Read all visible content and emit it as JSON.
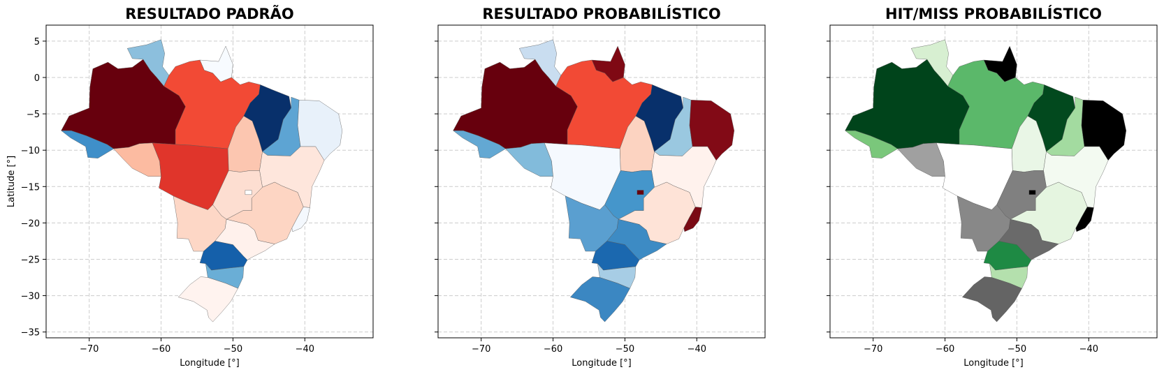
{
  "figure": {
    "panels": [
      {
        "title": "RESULTADO PADRÃO",
        "xlabel": "Longitude [°]",
        "ylabel": "Latitude [°]",
        "show_y_tick_labels": true,
        "colormap": "Blues/Reds diverging",
        "regions": [
          {
            "name": "AC",
            "fill": "#3f8fc9"
          },
          {
            "name": "AM",
            "fill": "#67000d"
          },
          {
            "name": "RR",
            "fill": "#8cbfdd"
          },
          {
            "name": "AP",
            "fill": "#f7fbff"
          },
          {
            "name": "PA",
            "fill": "#f24a35"
          },
          {
            "name": "RO",
            "fill": "#fcbba1"
          },
          {
            "name": "MT",
            "fill": "#e0352b"
          },
          {
            "name": "TO",
            "fill": "#fcc6b0"
          },
          {
            "name": "MA",
            "fill": "#08306b"
          },
          {
            "name": "PI",
            "fill": "#5da4d3"
          },
          {
            "name": "NE",
            "fill": "#e8f1fa"
          },
          {
            "name": "BA",
            "fill": "#fee6dc"
          },
          {
            "name": "GO",
            "fill": "#fdded1"
          },
          {
            "name": "MG",
            "fill": "#fdd5c3"
          },
          {
            "name": "MS",
            "fill": "#fdd7c6"
          },
          {
            "name": "SP",
            "fill": "#fff1ec"
          },
          {
            "name": "ES",
            "fill": "#f4f8fd"
          },
          {
            "name": "PR",
            "fill": "#1560aa"
          },
          {
            "name": "SC",
            "fill": "#6aaed6"
          },
          {
            "name": "RS",
            "fill": "#fff3ef"
          }
        ]
      },
      {
        "title": "RESULTADO PROBABILÍSTICO",
        "xlabel": "Longitude [°]",
        "ylabel": "",
        "show_y_tick_labels": false,
        "colormap": "Blues/Reds diverging",
        "regions": [
          {
            "name": "AC",
            "fill": "#63a8d3"
          },
          {
            "name": "AM",
            "fill": "#67000d"
          },
          {
            "name": "RR",
            "fill": "#c9ddf0"
          },
          {
            "name": "AP",
            "fill": "#7f0914"
          },
          {
            "name": "PA",
            "fill": "#f24a35"
          },
          {
            "name": "RO",
            "fill": "#82bbdb"
          },
          {
            "name": "MT",
            "fill": "#f5f9fe"
          },
          {
            "name": "TO",
            "fill": "#fcd3c1"
          },
          {
            "name": "MA",
            "fill": "#08306b"
          },
          {
            "name": "PI",
            "fill": "#9ac8e0"
          },
          {
            "name": "NE",
            "fill": "#820a16"
          },
          {
            "name": "BA",
            "fill": "#fff2ed"
          },
          {
            "name": "GO",
            "fill": "#4596cb"
          },
          {
            "name": "MG",
            "fill": "#fee3d7"
          },
          {
            "name": "MS",
            "fill": "#5a9fd0"
          },
          {
            "name": "SP",
            "fill": "#3d8bc4"
          },
          {
            "name": "ES",
            "fill": "#7a0a14"
          },
          {
            "name": "PR",
            "fill": "#1b68af"
          },
          {
            "name": "SC",
            "fill": "#a7cde5"
          },
          {
            "name": "RS",
            "fill": "#3b87c2"
          }
        ]
      },
      {
        "title": "HIT/MISS PROBABILÍSTICO",
        "xlabel": "Longitude [°]",
        "ylabel": "",
        "show_y_tick_labels": false,
        "colormap": "Greens/Greys",
        "regions": [
          {
            "name": "AC",
            "fill": "#7ac77b"
          },
          {
            "name": "AM",
            "fill": "#00441b"
          },
          {
            "name": "RR",
            "fill": "#d7efd1"
          },
          {
            "name": "AP",
            "fill": "#000000"
          },
          {
            "name": "PA",
            "fill": "#5bb86a"
          },
          {
            "name": "RO",
            "fill": "#a0a0a0"
          },
          {
            "name": "MT",
            "fill": "#ffffff"
          },
          {
            "name": "TO",
            "fill": "#e9f6e6"
          },
          {
            "name": "MA",
            "fill": "#02491e"
          },
          {
            "name": "PI",
            "fill": "#a3dba0"
          },
          {
            "name": "NE",
            "fill": "#000000"
          },
          {
            "name": "BA",
            "fill": "#f3faf1"
          },
          {
            "name": "GO",
            "fill": "#808080"
          },
          {
            "name": "MG",
            "fill": "#e5f5e0"
          },
          {
            "name": "MS",
            "fill": "#888888"
          },
          {
            "name": "SP",
            "fill": "#6a6a6a"
          },
          {
            "name": "ES",
            "fill": "#000000"
          },
          {
            "name": "PR",
            "fill": "#1e8a44"
          },
          {
            "name": "SC",
            "fill": "#b4e0ad"
          },
          {
            "name": "RS",
            "fill": "#646464"
          }
        ]
      }
    ],
    "x_axis": {
      "min": -76,
      "max": -30.5,
      "ticks": [
        -70,
        -60,
        -50,
        -40
      ],
      "tick_labels": [
        "−70",
        "−60",
        "−50",
        "−40"
      ]
    },
    "y_axis": {
      "min": -35.8,
      "max": 7.2,
      "ticks": [
        5,
        0,
        -5,
        -10,
        -15,
        -20,
        -25,
        -30,
        -35
      ],
      "tick_labels": [
        "5",
        "0",
        "−5",
        "−10",
        "−15",
        "−20",
        "−25",
        "−30",
        "−35"
      ]
    },
    "grid": true,
    "grid_style": "dashed",
    "grid_color": "#cccccc",
    "border_color": "#555555",
    "df_highlight_fill": {
      "panel_1": "#ffffff",
      "panel_2": "#67000d",
      "panel_3": "#000000"
    }
  }
}
